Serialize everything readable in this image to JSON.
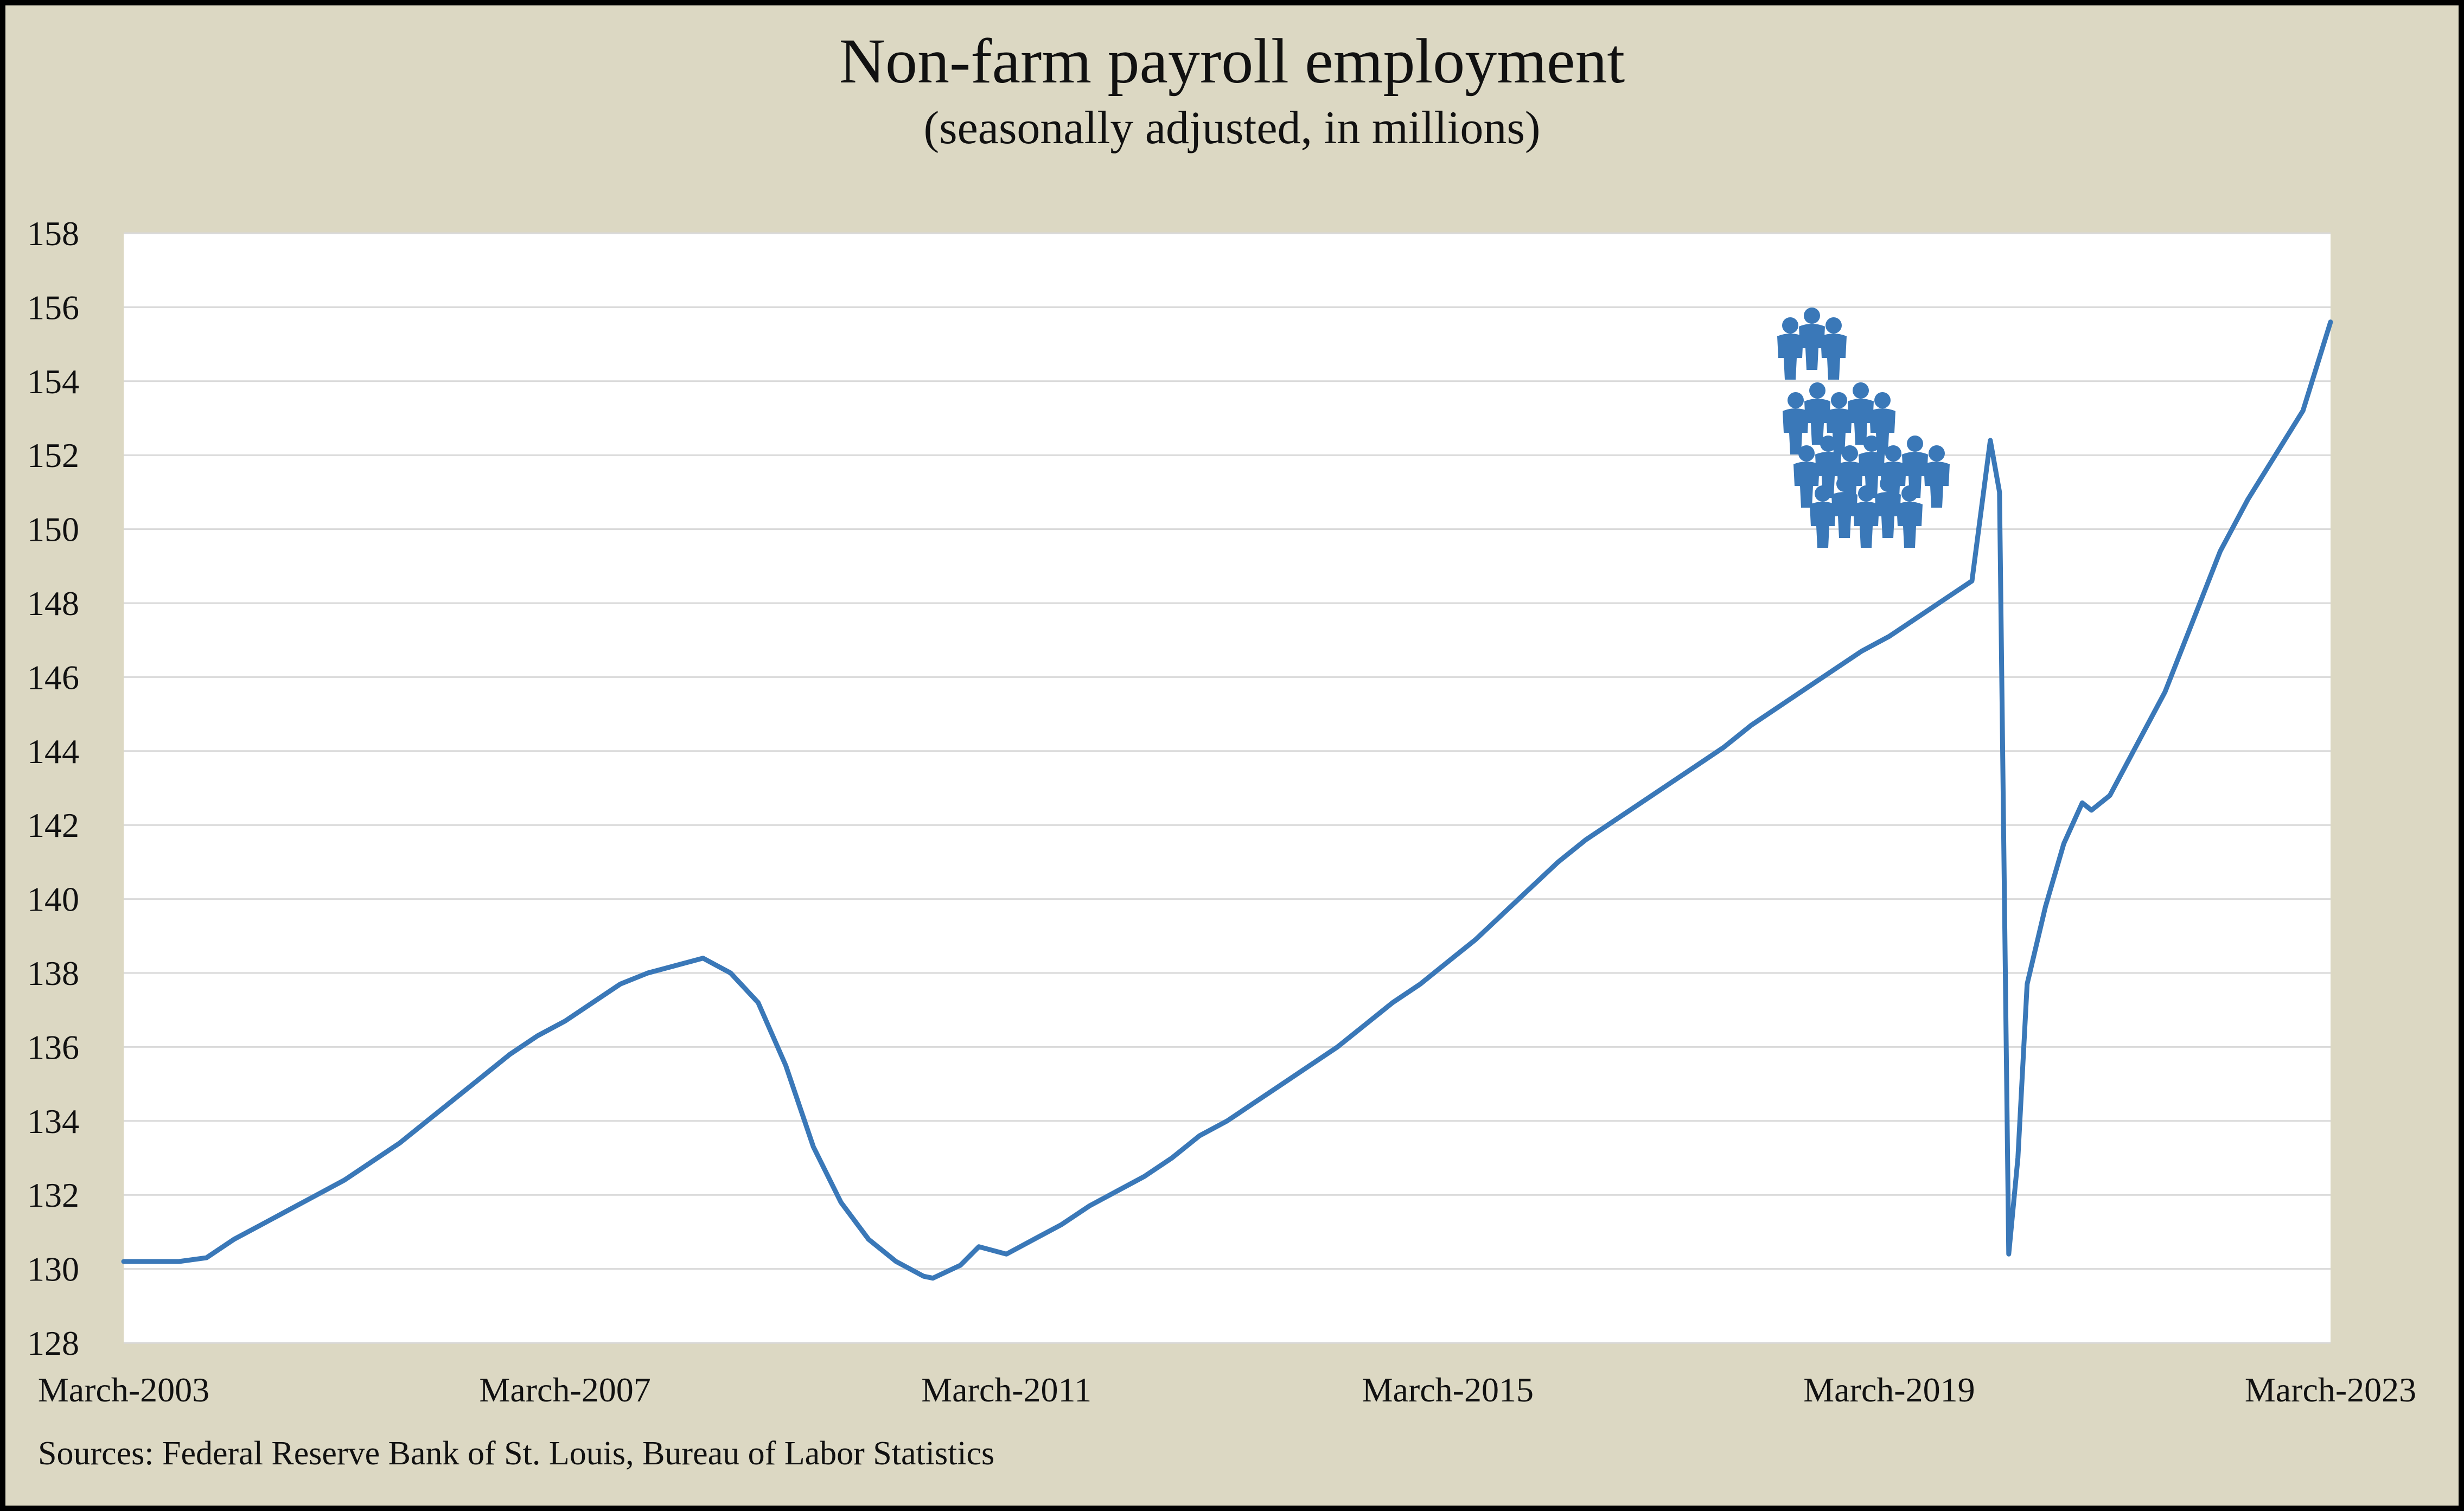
{
  "chart_data": {
    "type": "line",
    "title": "Non-farm payroll employment",
    "subtitle": "(seasonally adjusted, in millions)",
    "xlabel": "",
    "ylabel": "",
    "ylim": [
      128,
      158
    ],
    "yticks": [
      128,
      130,
      132,
      134,
      136,
      138,
      140,
      142,
      144,
      146,
      148,
      150,
      152,
      154,
      156,
      158
    ],
    "xlim": [
      "2003-03",
      "2023-03"
    ],
    "xtick_labels": [
      "March-2003",
      "March-2007",
      "March-2011",
      "March-2015",
      "March-2019",
      "March-2023"
    ],
    "grid": "horizontal",
    "legend": "none",
    "series_color": "#3a78b8",
    "annotation_icon": "group-of-people-icon",
    "series": [
      {
        "values": [
          [
            "2003-03",
            130.2
          ],
          [
            "2003-06",
            130.2
          ],
          [
            "2003-09",
            130.2
          ],
          [
            "2003-12",
            130.3
          ],
          [
            "2004-03",
            130.8
          ],
          [
            "2004-06",
            131.2
          ],
          [
            "2004-09",
            131.6
          ],
          [
            "2004-12",
            132.0
          ],
          [
            "2005-03",
            132.4
          ],
          [
            "2005-06",
            132.9
          ],
          [
            "2005-09",
            133.4
          ],
          [
            "2005-12",
            134.0
          ],
          [
            "2006-03",
            134.6
          ],
          [
            "2006-06",
            135.2
          ],
          [
            "2006-09",
            135.8
          ],
          [
            "2006-12",
            136.3
          ],
          [
            "2007-03",
            136.7
          ],
          [
            "2007-06",
            137.2
          ],
          [
            "2007-09",
            137.7
          ],
          [
            "2007-12",
            138.0
          ],
          [
            "2008-03",
            138.2
          ],
          [
            "2008-06",
            138.4
          ],
          [
            "2008-09",
            138.0
          ],
          [
            "2008-12",
            137.2
          ],
          [
            "2009-03",
            135.5
          ],
          [
            "2009-06",
            133.3
          ],
          [
            "2009-09",
            131.8
          ],
          [
            "2009-12",
            130.8
          ],
          [
            "2010-03",
            130.2
          ],
          [
            "2010-06",
            129.8
          ],
          [
            "2010-07",
            129.75
          ],
          [
            "2010-10",
            130.1
          ],
          [
            "2010-12",
            130.6
          ],
          [
            "2011-03",
            130.4
          ],
          [
            "2011-06",
            130.8
          ],
          [
            "2011-09",
            131.2
          ],
          [
            "2011-12",
            131.7
          ],
          [
            "2012-03",
            132.1
          ],
          [
            "2012-06",
            132.5
          ],
          [
            "2012-09",
            133.0
          ],
          [
            "2012-12",
            133.6
          ],
          [
            "2013-03",
            134.0
          ],
          [
            "2013-06",
            134.5
          ],
          [
            "2013-09",
            135.0
          ],
          [
            "2013-12",
            135.5
          ],
          [
            "2014-03",
            136.0
          ],
          [
            "2014-06",
            136.6
          ],
          [
            "2014-09",
            137.2
          ],
          [
            "2014-12",
            137.7
          ],
          [
            "2015-03",
            138.3
          ],
          [
            "2015-06",
            138.9
          ],
          [
            "2015-09",
            139.6
          ],
          [
            "2015-12",
            140.3
          ],
          [
            "2016-03",
            141.0
          ],
          [
            "2016-06",
            141.6
          ],
          [
            "2016-09",
            142.1
          ],
          [
            "2016-12",
            142.6
          ],
          [
            "2017-03",
            143.1
          ],
          [
            "2017-06",
            143.6
          ],
          [
            "2017-09",
            144.1
          ],
          [
            "2017-12",
            144.7
          ],
          [
            "2018-03",
            145.2
          ],
          [
            "2018-06",
            145.7
          ],
          [
            "2018-09",
            146.2
          ],
          [
            "2018-12",
            146.7
          ],
          [
            "2019-03",
            147.1
          ],
          [
            "2019-06",
            147.6
          ],
          [
            "2019-09",
            148.1
          ],
          [
            "2019-12",
            148.6
          ],
          [
            "2020-02",
            152.4
          ],
          [
            "2020-03",
            151.0
          ],
          [
            "2020-04",
            130.4
          ],
          [
            "2020-05",
            133.0
          ],
          [
            "2020-06",
            137.7
          ],
          [
            "2020-08",
            139.8
          ],
          [
            "2020-10",
            141.5
          ],
          [
            "2020-12",
            142.6
          ],
          [
            "2021-01",
            142.4
          ],
          [
            "2021-03",
            142.8
          ],
          [
            "2021-06",
            144.2
          ],
          [
            "2021-09",
            145.6
          ],
          [
            "2021-12",
            147.5
          ],
          [
            "2022-03",
            149.4
          ],
          [
            "2022-06",
            150.8
          ],
          [
            "2022-09",
            152.0
          ],
          [
            "2022-12",
            153.2
          ],
          [
            "2023-03",
            155.6
          ]
        ]
      }
    ],
    "source": "Sources: Federal Reserve Bank of St. Louis, Bureau of Labor Statistics"
  }
}
